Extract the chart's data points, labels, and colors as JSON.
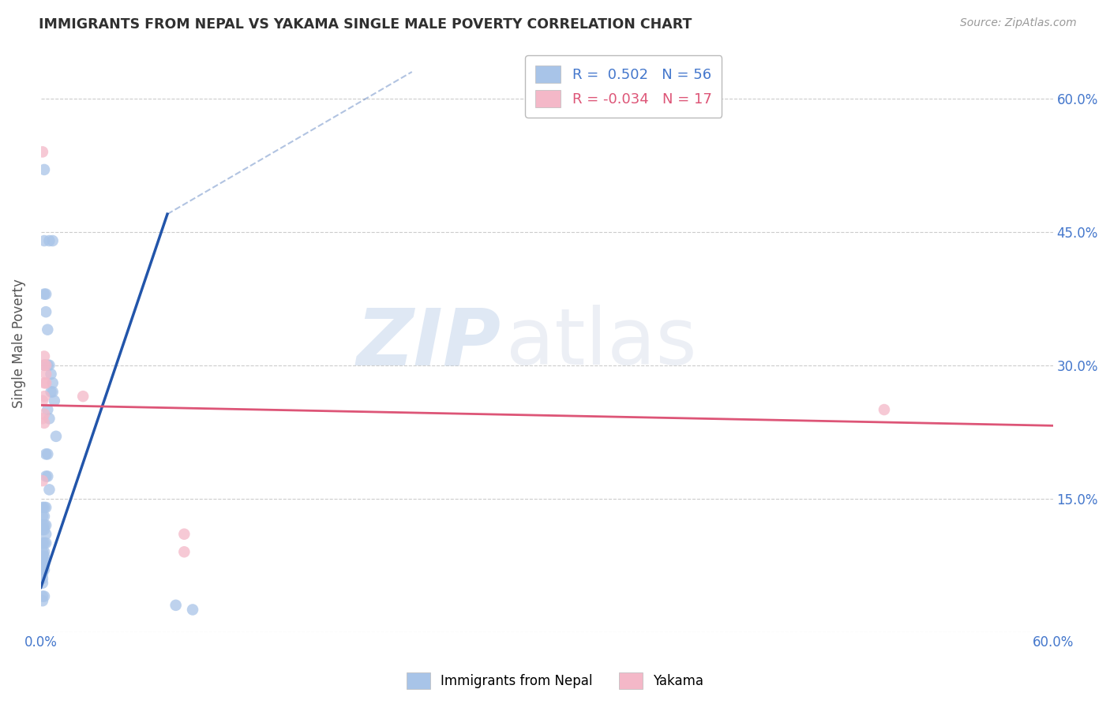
{
  "title": "IMMIGRANTS FROM NEPAL VS YAKAMA SINGLE MALE POVERTY CORRELATION CHART",
  "source": "Source: ZipAtlas.com",
  "ylabel": "Single Male Poverty",
  "legend_label1": "Immigrants from Nepal",
  "legend_label2": "Yakama",
  "r1": 0.502,
  "n1": 56,
  "r2": -0.034,
  "n2": 17,
  "watermark_zip": "ZIP",
  "watermark_atlas": "atlas",
  "blue_color": "#a8c4e8",
  "pink_color": "#f4b8c8",
  "blue_line_color": "#2255aa",
  "pink_line_color": "#dd5577",
  "blue_scatter": [
    [
      0.002,
      0.52
    ],
    [
      0.005,
      0.44
    ],
    [
      0.007,
      0.44
    ],
    [
      0.003,
      0.38
    ],
    [
      0.003,
      0.36
    ],
    [
      0.004,
      0.34
    ],
    [
      0.002,
      0.3
    ],
    [
      0.004,
      0.3
    ],
    [
      0.005,
      0.3
    ],
    [
      0.006,
      0.29
    ],
    [
      0.007,
      0.28
    ],
    [
      0.006,
      0.27
    ],
    [
      0.007,
      0.27
    ],
    [
      0.008,
      0.26
    ],
    [
      0.004,
      0.25
    ],
    [
      0.005,
      0.24
    ],
    [
      0.009,
      0.22
    ],
    [
      0.004,
      0.2
    ],
    [
      0.002,
      0.44
    ],
    [
      0.002,
      0.38
    ],
    [
      0.003,
      0.2
    ],
    [
      0.004,
      0.175
    ],
    [
      0.005,
      0.16
    ],
    [
      0.001,
      0.14
    ],
    [
      0.002,
      0.14
    ],
    [
      0.003,
      0.14
    ],
    [
      0.001,
      0.13
    ],
    [
      0.002,
      0.13
    ],
    [
      0.003,
      0.12
    ],
    [
      0.001,
      0.12
    ],
    [
      0.002,
      0.12
    ],
    [
      0.001,
      0.115
    ],
    [
      0.002,
      0.115
    ],
    [
      0.003,
      0.11
    ],
    [
      0.001,
      0.1
    ],
    [
      0.002,
      0.1
    ],
    [
      0.003,
      0.1
    ],
    [
      0.001,
      0.09
    ],
    [
      0.002,
      0.09
    ],
    [
      0.001,
      0.085
    ],
    [
      0.002,
      0.085
    ],
    [
      0.001,
      0.08
    ],
    [
      0.002,
      0.08
    ],
    [
      0.001,
      0.075
    ],
    [
      0.002,
      0.075
    ],
    [
      0.001,
      0.07
    ],
    [
      0.002,
      0.07
    ],
    [
      0.001,
      0.065
    ],
    [
      0.001,
      0.06
    ],
    [
      0.001,
      0.055
    ],
    [
      0.001,
      0.04
    ],
    [
      0.002,
      0.04
    ],
    [
      0.001,
      0.035
    ],
    [
      0.003,
      0.175
    ],
    [
      0.08,
      0.03
    ],
    [
      0.09,
      0.025
    ]
  ],
  "pink_scatter": [
    [
      0.001,
      0.54
    ],
    [
      0.002,
      0.31
    ],
    [
      0.002,
      0.3
    ],
    [
      0.003,
      0.3
    ],
    [
      0.003,
      0.29
    ],
    [
      0.002,
      0.28
    ],
    [
      0.003,
      0.28
    ],
    [
      0.002,
      0.265
    ],
    [
      0.001,
      0.26
    ],
    [
      0.002,
      0.245
    ],
    [
      0.001,
      0.24
    ],
    [
      0.002,
      0.235
    ],
    [
      0.001,
      0.17
    ],
    [
      0.025,
      0.265
    ],
    [
      0.5,
      0.25
    ],
    [
      0.085,
      0.11
    ],
    [
      0.085,
      0.09
    ]
  ],
  "xlim": [
    0.0,
    0.6
  ],
  "ylim": [
    0.0,
    0.65
  ],
  "yticks": [
    0.0,
    0.15,
    0.3,
    0.45,
    0.6
  ],
  "xticks": [
    0.0,
    0.1,
    0.2,
    0.3,
    0.4,
    0.5,
    0.6
  ],
  "grid_color": "#cccccc",
  "bg_color": "#ffffff",
  "title_color": "#303030",
  "axis_label_color": "#4477cc"
}
